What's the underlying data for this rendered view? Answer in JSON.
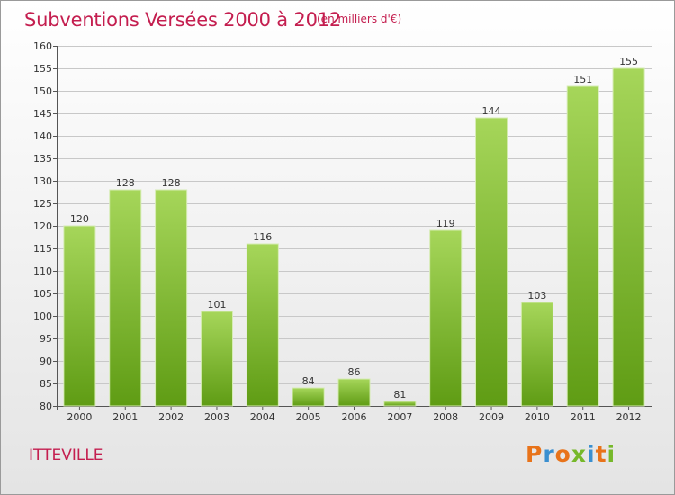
{
  "header": {
    "title": "Subventions Versées 2000 à 2012",
    "subtitle": "(en milliers d'€)"
  },
  "footer": {
    "commune": "ITTEVILLE",
    "logo": {
      "text": "Proxiti",
      "letters": [
        {
          "char": "P",
          "color": "#e8731a"
        },
        {
          "char": "r",
          "color": "#3a8fd0"
        },
        {
          "char": "o",
          "color": "#e8731a"
        },
        {
          "char": "x",
          "color": "#76b82a"
        },
        {
          "char": "i",
          "color": "#3a8fd0"
        },
        {
          "char": "t",
          "color": "#e8731a"
        },
        {
          "char": "i",
          "color": "#76b82a"
        }
      ]
    }
  },
  "colors": {
    "title": "#c41e4f",
    "bar_light": "#a6d65a",
    "bar_dark": "#5f9c14",
    "grid": "#c8c8c8"
  },
  "chart_data": {
    "type": "bar",
    "title": "Subventions Versées 2000 à 2012",
    "subtitle": "(en milliers d'€)",
    "xlabel": "",
    "ylabel": "",
    "categories": [
      "2000",
      "2001",
      "2002",
      "2003",
      "2004",
      "2005",
      "2006",
      "2007",
      "2008",
      "2009",
      "2010",
      "2011",
      "2012"
    ],
    "values": [
      120,
      128,
      128,
      101,
      116,
      84,
      86,
      81,
      119,
      144,
      103,
      151,
      155
    ],
    "ylim": [
      80,
      160
    ],
    "yticks": [
      80,
      85,
      90,
      95,
      100,
      105,
      110,
      115,
      120,
      125,
      130,
      135,
      140,
      145,
      150,
      155,
      160
    ],
    "grid": true,
    "data_labels": true
  }
}
